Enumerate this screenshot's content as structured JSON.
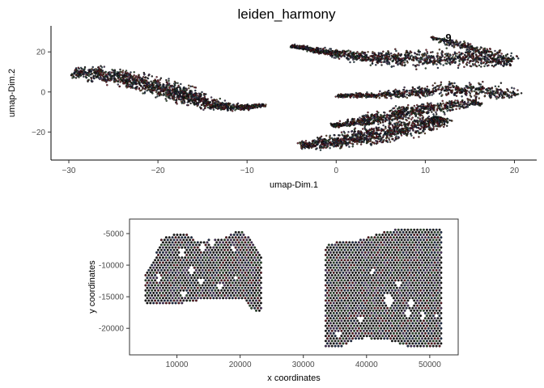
{
  "chart_data": [
    {
      "type": "scatter",
      "title": "leiden_harmony",
      "xlabel": "umap-Dim.1",
      "ylabel": "umap-Dim.2",
      "xlim": [
        -32,
        22.5
      ],
      "ylim": [
        -34,
        33
      ],
      "xticks": [
        -30,
        -20,
        -10,
        0,
        10,
        20
      ],
      "yticks": [
        -20,
        0,
        20
      ],
      "xtick_labels": [
        "−30",
        "−20",
        "−10",
        "0",
        "10",
        "20"
      ],
      "ytick_labels": [
        "−20",
        "0",
        "20"
      ],
      "frame": "left-bottom",
      "grid": false,
      "annotations": [
        {
          "text": "9",
          "x": 12.6,
          "y": 27.0
        }
      ],
      "point_colors": [
        "#1a1a1a",
        "#5c1d24",
        "#2f4f2f",
        "#1f2e4a",
        "#4a3560",
        "#6b4a2a",
        "#7a2230",
        "#2e4d55"
      ],
      "clusters": [
        {
          "path": [
            [
              -29.5,
              10
            ],
            [
              -26.5,
              9
            ],
            [
              -23,
              6
            ],
            [
              -19.5,
              2
            ],
            [
              -17,
              -2
            ],
            [
              -14.5,
              -6
            ],
            [
              -11,
              -8
            ],
            [
              -8,
              -6.5
            ]
          ],
          "width": [
            2.5,
            3.5,
            3.5,
            3.5,
            3,
            2.5,
            1.5,
            0.7
          ],
          "n": 1400
        },
        {
          "path": [
            [
              -5,
              23
            ],
            [
              0,
              19
            ],
            [
              4,
              17
            ],
            [
              8,
              16.5
            ],
            [
              13,
              17
            ],
            [
              17,
              16.5
            ],
            [
              20,
              15.5
            ]
          ],
          "width": [
            0.6,
            1.6,
            2.5,
            3.5,
            4.0,
            3.5,
            2.5
          ],
          "n": 1200
        },
        {
          "path": [
            [
              10.8,
              27.5
            ],
            [
              12.5,
              25
            ],
            [
              15,
              22
            ],
            [
              18,
              19
            ]
          ],
          "width": [
            0.6,
            1.2,
            1.8,
            1.5
          ],
          "n": 200
        },
        {
          "path": [
            [
              0,
              -2
            ],
            [
              5,
              -1.5
            ],
            [
              10,
              0
            ],
            [
              14,
              2
            ],
            [
              18,
              0
            ],
            [
              20,
              -2
            ]
          ],
          "width": [
            0.7,
            1.4,
            2.4,
            3.2,
            3.5,
            2.0
          ],
          "n": 700
        },
        {
          "path": [
            [
              -0.5,
              -17
            ],
            [
              4,
              -14
            ],
            [
              8,
              -10
            ],
            [
              12,
              -7
            ],
            [
              16,
              -5
            ]
          ],
          "width": [
            0.8,
            2.5,
            3.0,
            2.5,
            1.5
          ],
          "n": 800
        },
        {
          "path": [
            [
              -4,
              -26.5
            ],
            [
              -1,
              -26
            ],
            [
              2,
              -23
            ],
            [
              6,
              -20
            ],
            [
              10,
              -16
            ],
            [
              12,
              -13
            ]
          ],
          "width": [
            1.5,
            3.0,
            3.5,
            4.0,
            3.5,
            2.0
          ],
          "n": 1100
        }
      ]
    },
    {
      "type": "scatter",
      "xlabel": "x coordinates",
      "ylabel": "y coordinates",
      "xlim": [
        2500,
        54500
      ],
      "ylim": [
        -24200,
        -2700
      ],
      "xticks": [
        10000,
        20000,
        30000,
        40000,
        50000
      ],
      "yticks": [
        -5000,
        -10000,
        -15000,
        -20000
      ],
      "xtick_labels": [
        "10000",
        "20000",
        "30000",
        "40000",
        "50000"
      ],
      "ytick_labels": [
        "-5000",
        "-10000",
        "-15000",
        "-20000"
      ],
      "frame": "box",
      "grid": false,
      "tissue_regions": [
        {
          "polygon": [
            [
              5000,
              -11000
            ],
            [
              6200,
              -9500
            ],
            [
              7500,
              -6000
            ],
            [
              9500,
              -5000
            ],
            [
              11500,
              -4800
            ],
            [
              13000,
              -6200
            ],
            [
              15000,
              -6000
            ],
            [
              17000,
              -5800
            ],
            [
              18500,
              -5000
            ],
            [
              20000,
              -4500
            ],
            [
              21500,
              -5500
            ],
            [
              22500,
              -7000
            ],
            [
              23500,
              -9000
            ],
            [
              23500,
              -17500
            ],
            [
              21500,
              -17000
            ],
            [
              20500,
              -15500
            ],
            [
              17000,
              -15500
            ],
            [
              14000,
              -15500
            ],
            [
              11000,
              -16000
            ],
            [
              8000,
              -16000
            ],
            [
              5000,
              -16000
            ]
          ]
        },
        {
          "polygon": [
            [
              33500,
              -7000
            ],
            [
              36000,
              -6000
            ],
            [
              39000,
              -6000
            ],
            [
              42000,
              -5000
            ],
            [
              44000,
              -4500
            ],
            [
              46000,
              -4000
            ],
            [
              52000,
              -4000
            ],
            [
              52000,
              -23000
            ],
            [
              47000,
              -23000
            ],
            [
              44000,
              -22000
            ],
            [
              40000,
              -21500
            ],
            [
              38000,
              -22000
            ],
            [
              36000,
              -23000
            ],
            [
              33500,
              -23000
            ]
          ]
        }
      ],
      "holes": [
        {
          "x": 7200,
          "y": -12000,
          "r": 300
        },
        {
          "x": 10800,
          "y": -8000,
          "r": 350
        },
        {
          "x": 12200,
          "y": -10800,
          "r": 400
        },
        {
          "x": 13800,
          "y": -12500,
          "r": 300
        },
        {
          "x": 11000,
          "y": -14500,
          "r": 280
        },
        {
          "x": 14000,
          "y": -7200,
          "r": 350
        },
        {
          "x": 15500,
          "y": -6400,
          "r": 300
        },
        {
          "x": 19000,
          "y": -7500,
          "r": 300
        },
        {
          "x": 16800,
          "y": -13500,
          "r": 350
        },
        {
          "x": 19500,
          "y": -12000,
          "r": 250
        },
        {
          "x": 43500,
          "y": -15500,
          "r": 600
        },
        {
          "x": 45000,
          "y": -13000,
          "r": 300
        },
        {
          "x": 46500,
          "y": -17500,
          "r": 400
        },
        {
          "x": 49000,
          "y": -18000,
          "r": 350
        },
        {
          "x": 51000,
          "y": -18000,
          "r": 300
        },
        {
          "x": 47000,
          "y": -16000,
          "r": 300
        },
        {
          "x": 41000,
          "y": -11000,
          "r": 250
        },
        {
          "x": 39000,
          "y": -18500,
          "r": 300
        },
        {
          "x": 35500,
          "y": -21000,
          "r": 300
        }
      ],
      "point_spacing": 500
    }
  ]
}
